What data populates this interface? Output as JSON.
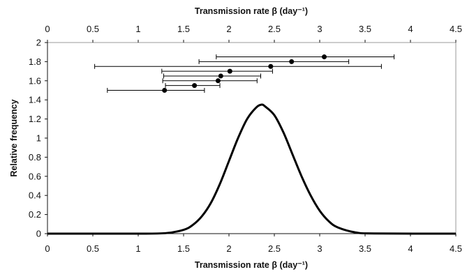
{
  "chart_data": {
    "type": "line",
    "xlabel_top": "Transmission rate β (day⁻¹)",
    "xlabel_bottom": "Transmission rate β (day⁻¹)",
    "ylabel": "Relative frequency",
    "xlim": [
      0,
      4.5
    ],
    "ylim": [
      0,
      2
    ],
    "xticks": [
      0,
      0.5,
      1,
      1.5,
      2,
      2.5,
      3,
      3.5,
      4,
      4.5
    ],
    "xtick_labels": [
      "0",
      "0.5",
      "1",
      "1.5",
      "2",
      "2.5",
      "3",
      "3.5",
      "4",
      "4.5"
    ],
    "yticks": [
      0,
      0.2,
      0.4,
      0.6,
      0.8,
      1,
      1.2,
      1.4,
      1.6,
      1.8,
      2
    ],
    "ytick_labels": [
      "0",
      "0.2",
      "0.4",
      "0.6",
      "0.8",
      "1",
      "1.2",
      "1.4",
      "1.6",
      "1.8",
      "2"
    ],
    "grid": false,
    "curve": {
      "x": [
        0,
        1.0,
        1.3,
        1.5,
        1.6,
        1.7,
        1.8,
        1.9,
        2.0,
        2.1,
        2.2,
        2.3,
        2.36,
        2.4,
        2.5,
        2.6,
        2.7,
        2.8,
        2.9,
        3.0,
        3.1,
        3.2,
        3.4,
        3.6,
        4.5
      ],
      "y": [
        0,
        0.0,
        0.005,
        0.04,
        0.09,
        0.18,
        0.32,
        0.52,
        0.76,
        1.0,
        1.2,
        1.32,
        1.35,
        1.33,
        1.24,
        1.06,
        0.83,
        0.6,
        0.4,
        0.24,
        0.13,
        0.065,
        0.012,
        0.002,
        0
      ]
    },
    "estimates": [
      {
        "y": 1.85,
        "x": 3.05,
        "low": 1.86,
        "high": 3.82
      },
      {
        "y": 1.8,
        "x": 2.69,
        "low": 1.67,
        "high": 3.32
      },
      {
        "y": 1.75,
        "x": 2.46,
        "low": 0.52,
        "high": 3.68
      },
      {
        "y": 1.7,
        "x": 2.01,
        "low": 1.26,
        "high": 2.48
      },
      {
        "y": 1.65,
        "x": 1.91,
        "low": 1.28,
        "high": 2.35
      },
      {
        "y": 1.6,
        "x": 1.88,
        "low": 1.27,
        "high": 2.31
      },
      {
        "y": 1.55,
        "x": 1.62,
        "low": 1.3,
        "high": 1.9
      },
      {
        "y": 1.5,
        "x": 1.29,
        "low": 0.66,
        "high": 1.73
      }
    ]
  }
}
